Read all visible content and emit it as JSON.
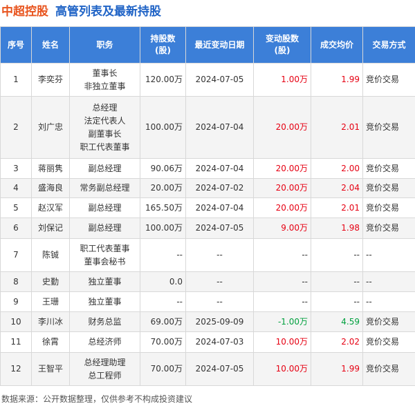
{
  "header": {
    "company": "中超控股",
    "title": "高管列表及最新持股"
  },
  "table": {
    "columns": [
      [
        "序号"
      ],
      [
        "姓名"
      ],
      [
        "职务"
      ],
      [
        "持股数",
        "(股)"
      ],
      [
        "最近变动日期"
      ],
      [
        "变动股数",
        "(股)"
      ],
      [
        "成交均价"
      ],
      [
        "交易方式"
      ]
    ],
    "change_color_up": "#e60012",
    "change_color_down": "#00a03e",
    "rows": [
      {
        "cells": [
          "1",
          "李奕芬",
          [
            "董事长",
            "非独立董事"
          ],
          "120.00万",
          "2024-07-05",
          "1.00万",
          "1.99",
          "竞价交易"
        ],
        "direction": "up"
      },
      {
        "cells": [
          "2",
          "刘广忠",
          [
            "总经理",
            "法定代表人",
            "副董事长",
            "职工代表董事"
          ],
          "100.00万",
          "2024-07-04",
          "20.00万",
          "2.01",
          "竞价交易"
        ],
        "direction": "up"
      },
      {
        "cells": [
          "3",
          "蒋丽隽",
          [
            "副总经理"
          ],
          "90.06万",
          "2024-07-04",
          "20.00万",
          "2.00",
          "竞价交易"
        ],
        "direction": "up"
      },
      {
        "cells": [
          "4",
          "盛海良",
          [
            "常务副总经理"
          ],
          "20.00万",
          "2024-07-02",
          "20.00万",
          "2.04",
          "竞价交易"
        ],
        "direction": "up"
      },
      {
        "cells": [
          "5",
          "赵汉军",
          [
            "副总经理"
          ],
          "165.50万",
          "2024-07-04",
          "20.00万",
          "2.01",
          "竞价交易"
        ],
        "direction": "up"
      },
      {
        "cells": [
          "6",
          "刘保记",
          [
            "副总经理"
          ],
          "100.00万",
          "2024-07-05",
          "9.00万",
          "1.98",
          "竞价交易"
        ],
        "direction": "up"
      },
      {
        "cells": [
          "7",
          "陈铖",
          [
            "职工代表董事",
            "董事会秘书"
          ],
          "--",
          "--",
          "--",
          "--",
          "--"
        ],
        "direction": "none"
      },
      {
        "cells": [
          "8",
          "史勤",
          [
            "独立董事"
          ],
          "0.0",
          "--",
          "--",
          "--",
          "--"
        ],
        "direction": "none"
      },
      {
        "cells": [
          "9",
          "王珊",
          [
            "独立董事"
          ],
          "--",
          "--",
          "--",
          "--",
          "--"
        ],
        "direction": "none"
      },
      {
        "cells": [
          "10",
          "李川冰",
          [
            "财务总监"
          ],
          "69.00万",
          "2025-09-09",
          "-1.00万",
          "4.59",
          "竞价交易"
        ],
        "direction": "down"
      },
      {
        "cells": [
          "11",
          "徐霄",
          [
            "总经济师"
          ],
          "70.00万",
          "2024-07-03",
          "10.00万",
          "2.02",
          "竞价交易"
        ],
        "direction": "up"
      },
      {
        "cells": [
          "12",
          "王智平",
          [
            "总经理助理",
            "总工程师"
          ],
          "70.00万",
          "2024-07-05",
          "10.00万",
          "1.99",
          "竞价交易"
        ],
        "direction": "up"
      }
    ]
  },
  "footer": "数据来源：公开数据整理，仅供参考不构成投资建议"
}
